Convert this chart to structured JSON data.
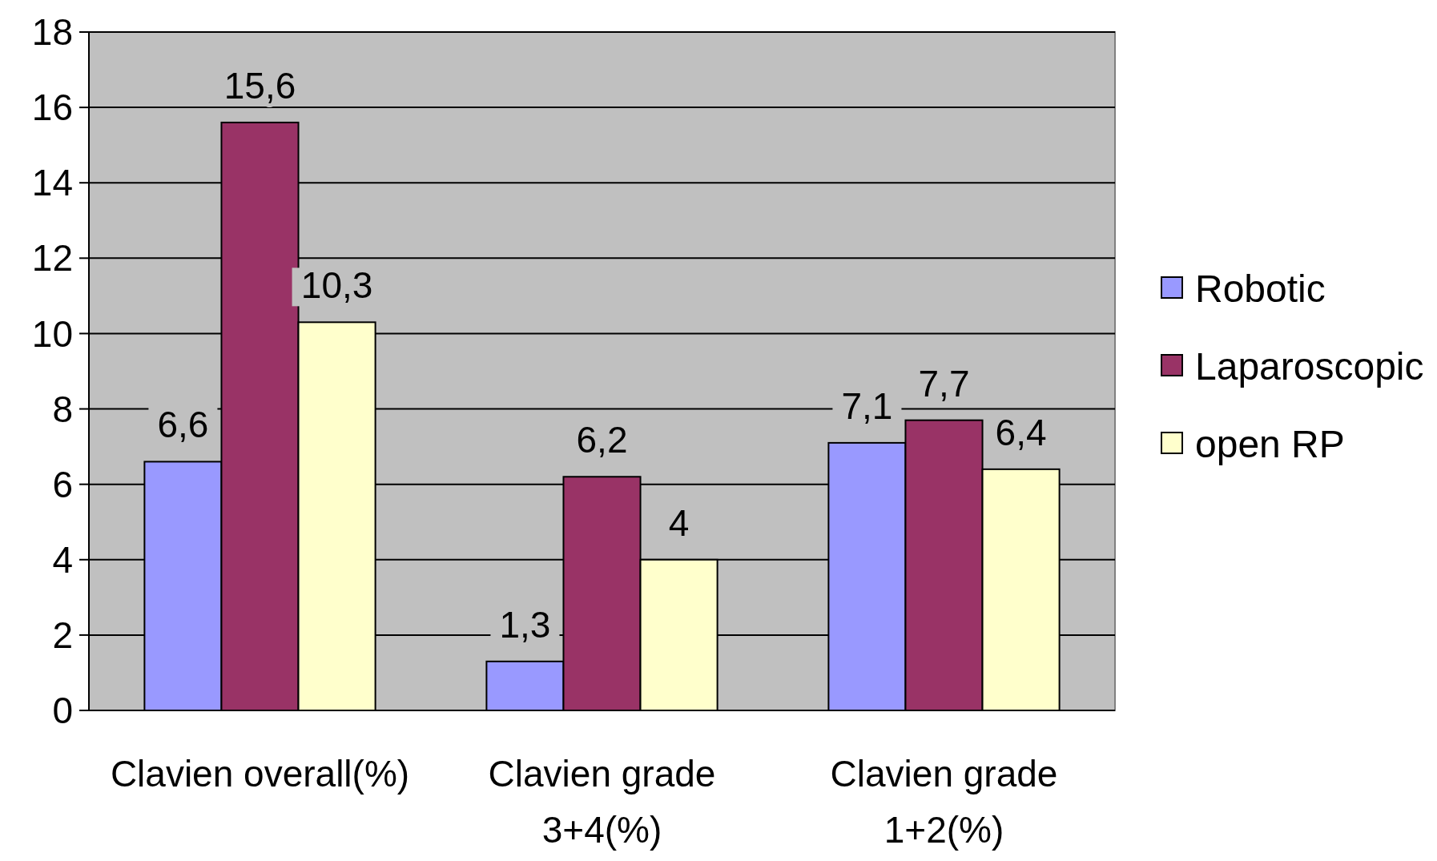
{
  "chart_data": {
    "type": "bar",
    "categories": [
      "Clavien overall(%)",
      "Clavien grade 3+4(%)",
      "Clavien grade 1+2(%)"
    ],
    "series": [
      {
        "name": "Robotic",
        "color": "#9999ff",
        "values": [
          6.6,
          1.3,
          7.1
        ],
        "value_labels": [
          "6,6",
          "1,3",
          "7,1"
        ]
      },
      {
        "name": "Laparoscopic",
        "color": "#993366",
        "values": [
          15.6,
          6.2,
          7.7
        ],
        "value_labels": [
          "15,6",
          "6,2",
          "7,7"
        ]
      },
      {
        "name": "open RP",
        "color": "#ffffcc",
        "values": [
          10.3,
          4,
          6.4
        ],
        "value_labels": [
          "10,3",
          "4",
          "6,4"
        ]
      }
    ],
    "ylim": [
      0,
      18
    ],
    "yticks": [
      0,
      2,
      4,
      6,
      8,
      10,
      12,
      14,
      16,
      18
    ],
    "grid": "y",
    "legend": "right"
  }
}
